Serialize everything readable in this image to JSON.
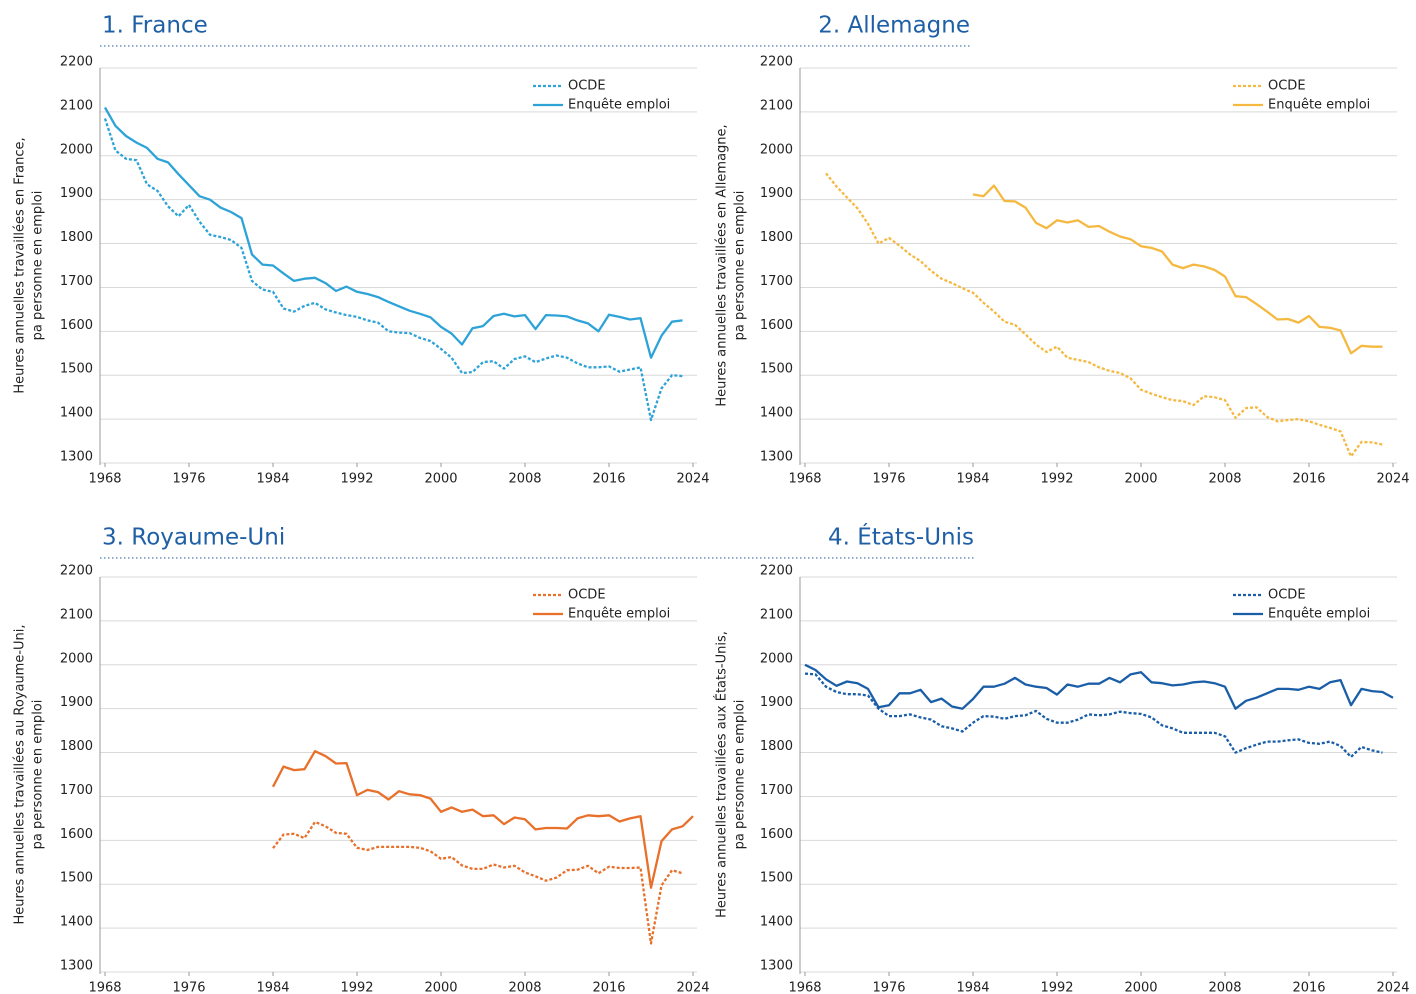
{
  "chart_data": [
    {
      "type": "line",
      "title": "1. France",
      "ylabel": [
        "Heures annuelles travaillées en France,",
        "pa personne en emploi"
      ],
      "x": [
        1968,
        1969,
        1970,
        1971,
        1972,
        1973,
        1974,
        1975,
        1976,
        1977,
        1978,
        1979,
        1980,
        1981,
        1982,
        1983,
        1984,
        1985,
        1986,
        1987,
        1988,
        1989,
        1990,
        1991,
        1992,
        1993,
        1994,
        1995,
        1996,
        1997,
        1998,
        1999,
        2000,
        2001,
        2002,
        2003,
        2004,
        2005,
        2006,
        2007,
        2008,
        2009,
        2010,
        2011,
        2012,
        2013,
        2014,
        2015,
        2016,
        2017,
        2018,
        2019,
        2020,
        2021,
        2022,
        2023,
        2024
      ],
      "xlim": [
        1968,
        2024
      ],
      "xticks": [
        1968,
        1976,
        1984,
        1992,
        2000,
        2008,
        2016,
        2024
      ],
      "ylim": [
        1300,
        2200
      ],
      "yticks": [
        1300,
        1400,
        1500,
        1600,
        1700,
        1800,
        1900,
        2000,
        2100,
        2200
      ],
      "grid": true,
      "legend": "upper right",
      "series": [
        {
          "name": "OCDE",
          "color": "#2ea3d8",
          "linestyle": "dotted",
          "values": [
            2085,
            2012,
            1993,
            1990,
            1935,
            1920,
            1885,
            1862,
            1888,
            1850,
            1820,
            1815,
            1808,
            1790,
            1715,
            1695,
            1690,
            1652,
            1645,
            1658,
            1665,
            1650,
            1643,
            1637,
            1633,
            1625,
            1620,
            1600,
            1597,
            1596,
            1585,
            1578,
            1560,
            1540,
            1505,
            1507,
            1530,
            1532,
            1515,
            1537,
            1543,
            1530,
            1538,
            1545,
            1540,
            1527,
            1518,
            1518,
            1520,
            1508,
            1513,
            1518,
            1398,
            1470,
            1500,
            1498,
            null
          ]
        },
        {
          "name": "Enquête emploi",
          "color": "#2ea3d8",
          "linestyle": "solid",
          "values": [
            2110,
            2068,
            2045,
            2030,
            2018,
            1993,
            1985,
            1958,
            1933,
            1908,
            1900,
            1882,
            1872,
            1858,
            1775,
            1752,
            1750,
            1732,
            1715,
            1720,
            1722,
            1710,
            1692,
            1702,
            1690,
            1685,
            1678,
            1667,
            1657,
            1647,
            1640,
            1632,
            1610,
            1595,
            1570,
            1607,
            1612,
            1635,
            1640,
            1634,
            1637,
            1605,
            1637,
            1636,
            1634,
            1625,
            1618,
            1600,
            1638,
            1633,
            1627,
            1630,
            1540,
            1590,
            1622,
            1625,
            null
          ]
        }
      ]
    },
    {
      "type": "line",
      "title": "2. Allemagne",
      "ylabel": [
        "Heures annuelles travaillées en Allemagne,",
        "pa personne en emploi"
      ],
      "x": [
        1968,
        1969,
        1970,
        1971,
        1972,
        1973,
        1974,
        1975,
        1976,
        1977,
        1978,
        1979,
        1980,
        1981,
        1982,
        1983,
        1984,
        1985,
        1986,
        1987,
        1988,
        1989,
        1990,
        1991,
        1992,
        1993,
        1994,
        1995,
        1996,
        1997,
        1998,
        1999,
        2000,
        2001,
        2002,
        2003,
        2004,
        2005,
        2006,
        2007,
        2008,
        2009,
        2010,
        2011,
        2012,
        2013,
        2014,
        2015,
        2016,
        2017,
        2018,
        2019,
        2020,
        2021,
        2022,
        2023,
        2024
      ],
      "xlim": [
        1968,
        2024
      ],
      "xticks": [
        1968,
        1976,
        1984,
        1992,
        2000,
        2008,
        2016,
        2024
      ],
      "ylim": [
        1300,
        2200
      ],
      "yticks": [
        1300,
        1400,
        1500,
        1600,
        1700,
        1800,
        1900,
        2000,
        2100,
        2200
      ],
      "grid": true,
      "legend": "upper right",
      "series": [
        {
          "name": "OCDE",
          "color": "#f5b942",
          "linestyle": "dotted",
          "values": [
            null,
            null,
            1960,
            1930,
            1905,
            1880,
            1845,
            1800,
            1813,
            1795,
            1775,
            1760,
            1738,
            1720,
            1710,
            1698,
            1688,
            1665,
            1645,
            1622,
            1615,
            1593,
            1570,
            1553,
            1565,
            1540,
            1535,
            1530,
            1518,
            1510,
            1505,
            1493,
            1467,
            1458,
            1450,
            1443,
            1441,
            1432,
            1452,
            1450,
            1443,
            1403,
            1425,
            1427,
            1405,
            1395,
            1398,
            1400,
            1395,
            1387,
            1380,
            1372,
            1315,
            1348,
            1347,
            1342,
            null
          ]
        },
        {
          "name": "Enquête emploi",
          "color": "#f5b942",
          "linestyle": "solid",
          "values": [
            null,
            null,
            null,
            null,
            null,
            null,
            null,
            null,
            null,
            null,
            null,
            null,
            null,
            null,
            null,
            null,
            1912,
            1908,
            1932,
            1897,
            1896,
            1882,
            1847,
            1835,
            1853,
            1848,
            1853,
            1838,
            1840,
            1827,
            1816,
            1810,
            1794,
            1790,
            1782,
            1752,
            1744,
            1752,
            1748,
            1740,
            1725,
            1680,
            1678,
            1662,
            1645,
            1627,
            1628,
            1620,
            1635,
            1610,
            1608,
            1602,
            1550,
            1567,
            1565,
            1565,
            null
          ]
        }
      ]
    },
    {
      "type": "line",
      "title": "3. Royaume-Uni",
      "ylabel": [
        "Heures annuelles travaillées au Royaume-Uni,",
        "pa personne en emploi"
      ],
      "x": [
        1968,
        1969,
        1970,
        1971,
        1972,
        1973,
        1974,
        1975,
        1976,
        1977,
        1978,
        1979,
        1980,
        1981,
        1982,
        1983,
        1984,
        1985,
        1986,
        1987,
        1988,
        1989,
        1990,
        1991,
        1992,
        1993,
        1994,
        1995,
        1996,
        1997,
        1998,
        1999,
        2000,
        2001,
        2002,
        2003,
        2004,
        2005,
        2006,
        2007,
        2008,
        2009,
        2010,
        2011,
        2012,
        2013,
        2014,
        2015,
        2016,
        2017,
        2018,
        2019,
        2020,
        2021,
        2022,
        2023,
        2024
      ],
      "xlim": [
        1968,
        2024
      ],
      "xticks": [
        1968,
        1976,
        1984,
        1992,
        2000,
        2008,
        2016,
        2024
      ],
      "ylim": [
        1300,
        2200
      ],
      "yticks": [
        1300,
        1400,
        1500,
        1600,
        1700,
        1800,
        1900,
        2000,
        2100,
        2200
      ],
      "grid": true,
      "legend": "upper right",
      "series": [
        {
          "name": "OCDE",
          "color": "#e8702a",
          "linestyle": "dotted",
          "values": [
            null,
            null,
            null,
            null,
            null,
            null,
            null,
            null,
            null,
            null,
            null,
            null,
            null,
            null,
            null,
            null,
            1582,
            1613,
            1615,
            1605,
            1642,
            1632,
            1617,
            1615,
            1583,
            1578,
            1585,
            1585,
            1585,
            1585,
            1583,
            1575,
            1558,
            1562,
            1543,
            1535,
            1535,
            1545,
            1538,
            1542,
            1527,
            1518,
            1508,
            1515,
            1532,
            1533,
            1542,
            1525,
            1540,
            1537,
            1537,
            1538,
            1365,
            1497,
            1532,
            1525,
            null
          ]
        },
        {
          "name": "Enquête emploi",
          "color": "#e8702a",
          "linestyle": "solid",
          "values": [
            null,
            null,
            null,
            null,
            null,
            null,
            null,
            null,
            null,
            null,
            null,
            null,
            null,
            null,
            null,
            null,
            1722,
            1768,
            1760,
            1762,
            1803,
            1792,
            1775,
            1776,
            1703,
            1715,
            1710,
            1693,
            1712,
            1705,
            1703,
            1695,
            1665,
            1675,
            1665,
            1670,
            1655,
            1657,
            1637,
            1652,
            1648,
            1625,
            1628,
            1628,
            1627,
            1650,
            1657,
            1655,
            1657,
            1643,
            1650,
            1655,
            1492,
            1598,
            1625,
            1632,
            1655
          ]
        }
      ]
    },
    {
      "type": "line",
      "title": "4. États-Unis",
      "ylabel": [
        "Heures annuelles travaillées aux États-Unis,",
        "pa personne en emploi"
      ],
      "x": [
        1968,
        1969,
        1970,
        1971,
        1972,
        1973,
        1974,
        1975,
        1976,
        1977,
        1978,
        1979,
        1980,
        1981,
        1982,
        1983,
        1984,
        1985,
        1986,
        1987,
        1988,
        1989,
        1990,
        1991,
        1992,
        1993,
        1994,
        1995,
        1996,
        1997,
        1998,
        1999,
        2000,
        2001,
        2002,
        2003,
        2004,
        2005,
        2006,
        2007,
        2008,
        2009,
        2010,
        2011,
        2012,
        2013,
        2014,
        2015,
        2016,
        2017,
        2018,
        2019,
        2020,
        2021,
        2022,
        2023,
        2024
      ],
      "xlim": [
        1968,
        2024
      ],
      "xticks": [
        1968,
        1976,
        1984,
        1992,
        2000,
        2008,
        2016,
        2024
      ],
      "ylim": [
        1300,
        2200
      ],
      "yticks": [
        1300,
        1400,
        1500,
        1600,
        1700,
        1800,
        1900,
        2000,
        2100,
        2200
      ],
      "grid": true,
      "legend": "upper right",
      "series": [
        {
          "name": "OCDE",
          "color": "#1a5ea8",
          "linestyle": "dotted",
          "values": [
            1980,
            1978,
            1950,
            1938,
            1933,
            1933,
            1930,
            1900,
            1883,
            1883,
            1887,
            1880,
            1875,
            1860,
            1855,
            1848,
            1868,
            1883,
            1882,
            1877,
            1883,
            1885,
            1895,
            1877,
            1868,
            1868,
            1875,
            1887,
            1885,
            1887,
            1893,
            1890,
            1888,
            1880,
            1862,
            1855,
            1845,
            1845,
            1845,
            1845,
            1837,
            1800,
            1810,
            1818,
            1825,
            1825,
            1828,
            1830,
            1822,
            1820,
            1825,
            1815,
            1790,
            1813,
            1805,
            1800,
            null
          ]
        },
        {
          "name": "Enquête emploi",
          "color": "#1a5ea8",
          "linestyle": "solid",
          "values": [
            2000,
            1988,
            1967,
            1952,
            1962,
            1958,
            1945,
            1903,
            1908,
            1935,
            1935,
            1943,
            1915,
            1923,
            1905,
            1900,
            1922,
            1950,
            1950,
            1957,
            1970,
            1955,
            1950,
            1947,
            1932,
            1955,
            1950,
            1957,
            1957,
            1970,
            1960,
            1978,
            1983,
            1960,
            1958,
            1953,
            1955,
            1960,
            1962,
            1958,
            1950,
            1900,
            1918,
            1925,
            1935,
            1945,
            1945,
            1943,
            1950,
            1945,
            1960,
            1965,
            1908,
            1945,
            1940,
            1938,
            1925
          ]
        }
      ]
    }
  ]
}
